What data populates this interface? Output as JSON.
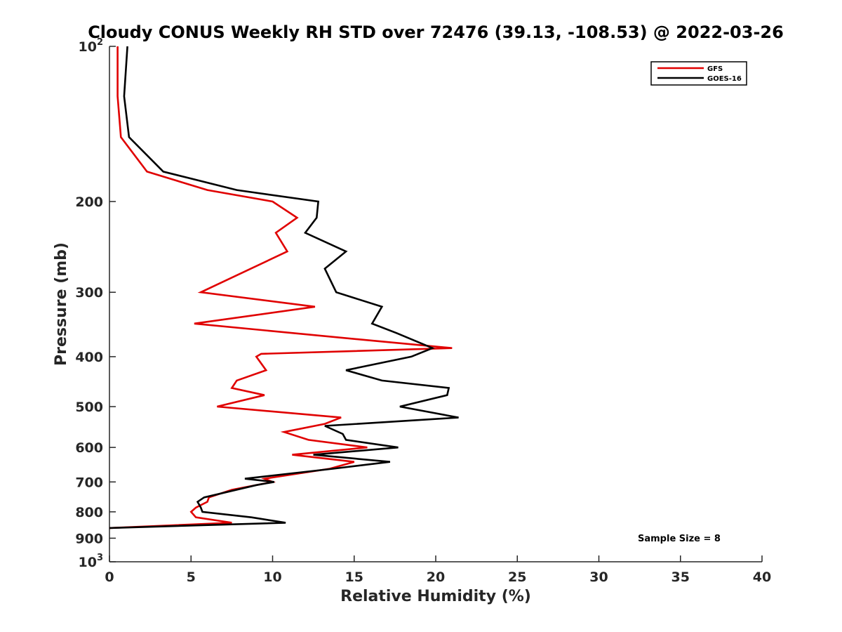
{
  "chart_data": {
    "type": "line",
    "title": "Cloudy CONUS Weekly RH STD over 72476 (39.13, -108.53) @ 2022-03-26",
    "xlabel": "Relative Humidity (%)",
    "ylabel": "Pressure (mb)",
    "xlim": [
      0,
      40
    ],
    "ylim": [
      100,
      1000
    ],
    "y_scale": "log",
    "y_reversed": true,
    "x_ticks": [
      "0",
      "5",
      "10",
      "15",
      "20",
      "25",
      "30",
      "35",
      "40"
    ],
    "y_ticks": [
      {
        "value": 100,
        "base": "10",
        "exp": "2"
      },
      {
        "value": 200,
        "label": "200"
      },
      {
        "value": 300,
        "label": "300"
      },
      {
        "value": 400,
        "label": "400"
      },
      {
        "value": 500,
        "label": "500"
      },
      {
        "value": 600,
        "label": "600"
      },
      {
        "value": 700,
        "label": "700"
      },
      {
        "value": 800,
        "label": "800"
      },
      {
        "value": 900,
        "label": "900"
      },
      {
        "value": 1000,
        "base": "10",
        "exp": "3"
      }
    ],
    "legend": "top-right",
    "grid": false,
    "annotation": "Sample Size = 8",
    "series": [
      {
        "name": "GFS",
        "color": "#e00000",
        "points": [
          [
            0.5,
            100
          ],
          [
            0.5,
            125
          ],
          [
            0.7,
            150
          ],
          [
            2.3,
            175
          ],
          [
            6.0,
            190
          ],
          [
            10.0,
            200
          ],
          [
            11.5,
            215
          ],
          [
            10.2,
            230
          ],
          [
            10.9,
            250
          ],
          [
            5.6,
            300
          ],
          [
            12.6,
            320
          ],
          [
            5.2,
            345
          ],
          [
            15.2,
            370
          ],
          [
            21.0,
            385
          ],
          [
            9.3,
            395
          ],
          [
            9.0,
            400
          ],
          [
            9.6,
            425
          ],
          [
            7.8,
            445
          ],
          [
            7.5,
            460
          ],
          [
            9.5,
            475
          ],
          [
            6.6,
            500
          ],
          [
            14.2,
            525
          ],
          [
            13.2,
            540
          ],
          [
            10.7,
            560
          ],
          [
            12.2,
            580
          ],
          [
            15.8,
            600
          ],
          [
            11.2,
            620
          ],
          [
            15.0,
            640
          ],
          [
            13.5,
            660
          ],
          [
            9.5,
            690
          ],
          [
            10.0,
            700
          ],
          [
            7.5,
            725
          ],
          [
            6.1,
            750
          ],
          [
            6.0,
            765
          ],
          [
            5.3,
            785
          ],
          [
            5.0,
            800
          ],
          [
            5.3,
            820
          ],
          [
            7.5,
            840
          ],
          [
            0.0,
            860
          ]
        ]
      },
      {
        "name": "GOES-16",
        "color": "#000000",
        "points": [
          [
            1.1,
            100
          ],
          [
            0.9,
            125
          ],
          [
            1.2,
            150
          ],
          [
            3.3,
            175
          ],
          [
            7.8,
            190
          ],
          [
            12.8,
            200
          ],
          [
            12.7,
            215
          ],
          [
            12.0,
            230
          ],
          [
            14.5,
            250
          ],
          [
            13.2,
            270
          ],
          [
            13.9,
            300
          ],
          [
            16.7,
            320
          ],
          [
            16.1,
            345
          ],
          [
            17.6,
            360
          ],
          [
            19.8,
            385
          ],
          [
            18.5,
            400
          ],
          [
            14.5,
            425
          ],
          [
            16.7,
            445
          ],
          [
            20.8,
            460
          ],
          [
            20.7,
            475
          ],
          [
            17.8,
            500
          ],
          [
            21.4,
            525
          ],
          [
            13.2,
            545
          ],
          [
            14.3,
            565
          ],
          [
            14.5,
            580
          ],
          [
            17.7,
            600
          ],
          [
            12.5,
            620
          ],
          [
            17.2,
            640
          ],
          [
            13.7,
            660
          ],
          [
            8.3,
            690
          ],
          [
            10.1,
            700
          ],
          [
            9.0,
            710
          ],
          [
            5.8,
            750
          ],
          [
            5.4,
            765
          ],
          [
            5.6,
            785
          ],
          [
            5.7,
            800
          ],
          [
            8.7,
            820
          ],
          [
            10.8,
            840
          ],
          [
            0.0,
            860
          ]
        ]
      }
    ]
  }
}
